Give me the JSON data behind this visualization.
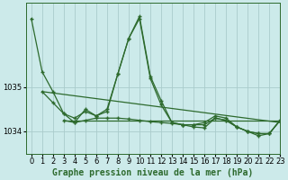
{
  "title": "Graphe pression niveau de la mer (hPa)",
  "bg_color": "#cceaea",
  "grid_color": "#aacccc",
  "line_color": "#2d6a2d",
  "xlim": [
    -0.5,
    23
  ],
  "ylim": [
    1033.5,
    1036.9
  ],
  "yticks": [
    1034,
    1035
  ],
  "xticks": [
    0,
    1,
    2,
    3,
    4,
    5,
    6,
    7,
    8,
    9,
    10,
    11,
    12,
    13,
    14,
    15,
    16,
    17,
    18,
    19,
    20,
    21,
    22,
    23
  ],
  "series1_x": [
    0,
    1,
    2,
    3,
    4,
    5,
    6,
    7,
    8,
    9,
    10,
    11,
    12,
    13,
    14,
    15,
    16,
    17,
    18,
    19,
    20,
    21,
    22,
    23
  ],
  "series1_y": [
    1036.55,
    1035.35,
    1034.9,
    1034.4,
    1034.2,
    1034.5,
    1034.35,
    1034.5,
    1035.3,
    1036.1,
    1036.6,
    1035.25,
    1034.7,
    1034.2,
    1034.15,
    1034.15,
    1034.2,
    1034.35,
    1034.3,
    1034.1,
    1034.0,
    1033.95,
    1033.95,
    1034.25
  ],
  "series2_x": [
    1,
    2,
    3,
    4,
    5,
    6,
    7,
    8,
    9,
    10,
    11,
    12,
    13,
    14,
    15,
    16,
    17,
    18,
    19,
    20,
    21,
    22,
    23
  ],
  "series2_y": [
    1034.9,
    1034.65,
    1034.4,
    1034.3,
    1034.45,
    1034.35,
    1034.45,
    1035.3,
    1036.1,
    1036.55,
    1035.2,
    1034.6,
    1034.2,
    1034.15,
    1034.15,
    1034.15,
    1034.3,
    1034.25,
    1034.1,
    1034.0,
    1033.95,
    1033.95,
    1034.25
  ],
  "series3_x": [
    3,
    4,
    5,
    6,
    7,
    8,
    9,
    10,
    11,
    12,
    13,
    14,
    15,
    16,
    17,
    18,
    19,
    20,
    21,
    22,
    23
  ],
  "series3_y": [
    1034.25,
    1034.2,
    1034.25,
    1034.3,
    1034.3,
    1034.3,
    1034.28,
    1034.25,
    1034.22,
    1034.2,
    1034.18,
    1034.15,
    1034.1,
    1034.08,
    1034.3,
    1034.25,
    1034.1,
    1034.0,
    1033.9,
    1033.95,
    1034.25
  ],
  "trend_x": [
    1,
    23
  ],
  "trend_y": [
    1034.9,
    1034.2
  ],
  "hline_x": [
    3,
    23
  ],
  "hline_y": [
    1034.25,
    1034.25
  ],
  "title_fontsize": 7,
  "tick_fontsize": 6
}
